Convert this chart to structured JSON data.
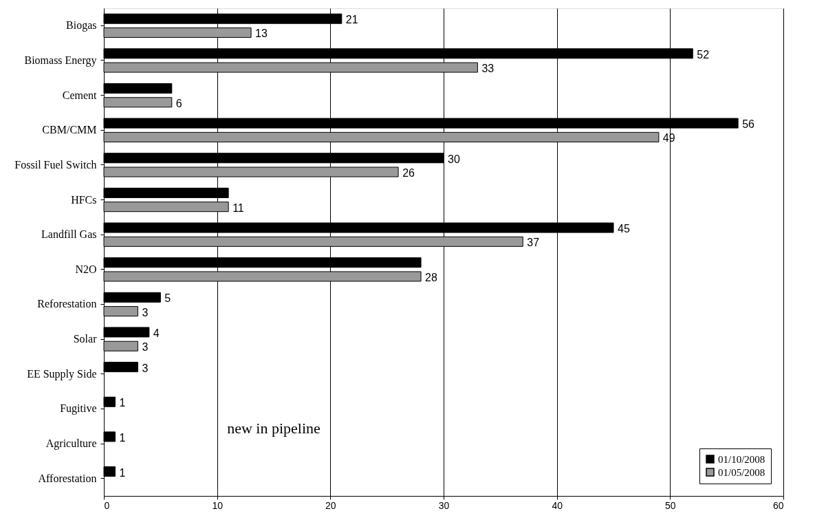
{
  "chart_data": {
    "type": "bar",
    "orientation": "horizontal",
    "categories": [
      "Biogas",
      "Biomass Energy",
      "Cement",
      "CBM/CMM",
      "Fossil Fuel Switch",
      "HFCs",
      "Landfill Gas",
      "N2O",
      "Reforestation",
      "Solar",
      "EE Supply Side",
      "Fugitive",
      "Agriculture",
      "Afforestation"
    ],
    "series": [
      {
        "name": "01/10/2008",
        "color": "#000000",
        "values": [
          21,
          52,
          6,
          56,
          30,
          11,
          45,
          28,
          5,
          4,
          3,
          1,
          1,
          1
        ],
        "value_labels": [
          "21",
          "52",
          null,
          "56",
          "30",
          null,
          "45",
          null,
          "5",
          "4",
          "3",
          "1",
          "1",
          "1"
        ]
      },
      {
        "name": "01/05/2008",
        "color": "#999999",
        "values": [
          13,
          33,
          6,
          49,
          26,
          11,
          37,
          28,
          3,
          3,
          null,
          null,
          null,
          null
        ],
        "value_labels": [
          "13",
          "33",
          "6",
          "49",
          "26",
          "11",
          "37",
          "28",
          "3",
          "3",
          null,
          null,
          null,
          null
        ]
      }
    ],
    "xlim": [
      0,
      60
    ],
    "xticks": [
      0,
      10,
      20,
      30,
      40,
      50,
      60
    ],
    "grid": "x",
    "legend": "bottom right",
    "annotations": [
      "new in pipeline"
    ]
  }
}
